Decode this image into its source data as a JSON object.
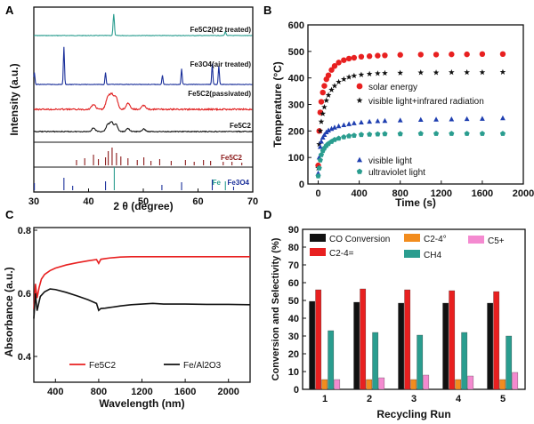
{
  "panels": [
    {
      "letter": "A",
      "type": "line",
      "xlabel": "2 θ (degree)",
      "ylabel": "Intensity (a.u.)",
      "xlim": [
        30,
        70
      ],
      "x_ticks": [
        30,
        40,
        50,
        60,
        70
      ],
      "colors": {
        "h2": "#2a9d8f",
        "air": "#1a2f9a",
        "pass": "#e02020",
        "fe5c2": "#111111",
        "ref1": "#8b1a1a",
        "ref2": "#1a2f9a"
      },
      "series": [
        {
          "key": "h2",
          "name": "Fe5C2(H2 treated)",
          "peaks": [
            [
              44.6,
              1.0
            ],
            [
              65.0,
              0.18
            ]
          ]
        },
        {
          "key": "air",
          "name": "Fe3O4(air treated)",
          "peaks": [
            [
              30.1,
              0.32
            ],
            [
              35.5,
              1.0
            ],
            [
              43.1,
              0.32
            ],
            [
              53.5,
              0.25
            ],
            [
              57.0,
              0.42
            ],
            [
              62.6,
              0.55
            ],
            [
              63.8,
              0.5
            ]
          ]
        },
        {
          "key": "pass",
          "name": "Fe5C2(passivated)",
          "peaks": [
            [
              40.9,
              0.25
            ],
            [
              43.5,
              0.55
            ],
            [
              44.2,
              0.7
            ],
            [
              45.0,
              0.6
            ],
            [
              47.2,
              0.3
            ],
            [
              50.1,
              0.2
            ]
          ]
        },
        {
          "key": "fe5c2",
          "name": "Fe5C2",
          "peaks": [
            [
              40.9,
              0.3
            ],
            [
              43.5,
              0.55
            ],
            [
              44.2,
              0.75
            ],
            [
              45.0,
              0.6
            ],
            [
              47.2,
              0.25
            ],
            [
              50.1,
              0.2
            ]
          ]
        }
      ],
      "reference_labels": [
        "Fe5C2",
        "Fe",
        "Fe3O4"
      ]
    },
    {
      "letter": "B",
      "type": "scatter",
      "xlabel": "Time (s)",
      "ylabel": "Temperature (°C)",
      "xlim": [
        -100,
        2000
      ],
      "ylim": [
        0,
        600
      ],
      "x_ticks": [
        0,
        400,
        800,
        1200,
        1600,
        2000
      ],
      "y_ticks": [
        0,
        100,
        200,
        300,
        400,
        500,
        600
      ],
      "series": [
        {
          "name": "solar energy",
          "marker": "circle",
          "color": "#e82020",
          "x": [
            0,
            10,
            20,
            30,
            45,
            60,
            80,
            100,
            130,
            160,
            200,
            250,
            300,
            350,
            420,
            500,
            580,
            650,
            800,
            1000,
            1150,
            1300,
            1450,
            1600,
            1800
          ],
          "y": [
            70,
            200,
            270,
            310,
            345,
            370,
            395,
            410,
            430,
            445,
            458,
            467,
            473,
            476,
            480,
            482,
            484,
            485,
            487,
            488,
            488,
            489,
            489,
            490,
            490
          ]
        },
        {
          "name": "visible light+infrared radiation",
          "marker": "star",
          "color": "#111111",
          "x": [
            0,
            10,
            20,
            30,
            45,
            60,
            80,
            100,
            130,
            160,
            200,
            250,
            300,
            350,
            420,
            500,
            580,
            650,
            800,
            1000,
            1150,
            1300,
            1450,
            1600,
            1800
          ],
          "y": [
            60,
            150,
            200,
            235,
            265,
            290,
            315,
            335,
            355,
            370,
            385,
            395,
            403,
            408,
            412,
            415,
            417,
            418,
            419,
            420,
            420,
            421,
            421,
            421,
            422
          ]
        },
        {
          "name": "visible light",
          "marker": "triangle",
          "color": "#1f3fb0",
          "x": [
            0,
            10,
            20,
            30,
            45,
            60,
            80,
            100,
            130,
            160,
            200,
            250,
            300,
            350,
            420,
            500,
            580,
            650,
            800,
            1000,
            1150,
            1300,
            1450,
            1600,
            1800
          ],
          "y": [
            40,
            100,
            140,
            160,
            175,
            185,
            195,
            202,
            208,
            213,
            218,
            222,
            226,
            229,
            232,
            235,
            237,
            238,
            240,
            242,
            243,
            244,
            245,
            246,
            248
          ]
        },
        {
          "name": "ultraviolet light",
          "marker": "pentagon",
          "color": "#2a9d8f",
          "x": [
            0,
            10,
            20,
            30,
            45,
            60,
            80,
            100,
            130,
            160,
            200,
            250,
            300,
            350,
            420,
            500,
            580,
            650,
            800,
            1000,
            1150,
            1300,
            1450,
            1600,
            1800
          ],
          "y": [
            30,
            60,
            90,
            110,
            125,
            135,
            145,
            152,
            160,
            167,
            172,
            177,
            181,
            183,
            186,
            187,
            188,
            189,
            189,
            190,
            190,
            190,
            190,
            190,
            190
          ]
        }
      ]
    },
    {
      "letter": "C",
      "type": "line",
      "xlabel": "Wavelength (nm)",
      "ylabel": "Absorbance (a.u.)",
      "xlim": [
        200,
        2200
      ],
      "ylim": [
        0.4,
        0.8
      ],
      "x_ticks": [
        400,
        800,
        1200,
        1600,
        2000
      ],
      "y_ticks": [
        0.4,
        0.6,
        0.8
      ],
      "y_tick_labels": [
        "0.4",
        "0.6",
        "0.8"
      ],
      "series": [
        {
          "name": "Fe5C2",
          "color": "#e82020",
          "x": [
            200,
            215,
            230,
            250,
            270,
            300,
            350,
            400,
            500,
            600,
            700,
            780,
            800,
            820,
            860,
            900,
            1000,
            1100,
            1200,
            1400,
            1600,
            1800,
            2000,
            2200
          ],
          "y": [
            0.55,
            0.63,
            0.585,
            0.62,
            0.645,
            0.66,
            0.672,
            0.68,
            0.69,
            0.697,
            0.703,
            0.707,
            0.695,
            0.708,
            0.71,
            0.712,
            0.715,
            0.716,
            0.716,
            0.716,
            0.716,
            0.716,
            0.716,
            0.716
          ]
        },
        {
          "name": "Fe/Al2O3",
          "color": "#111111",
          "x": [
            200,
            215,
            230,
            260,
            300,
            350,
            400,
            500,
            600,
            700,
            780,
            800,
            820,
            860,
            900,
            1000,
            1100,
            1200,
            1300,
            1400,
            1600,
            1800,
            2000,
            2200
          ],
          "y": [
            0.52,
            0.6,
            0.545,
            0.59,
            0.605,
            0.614,
            0.612,
            0.603,
            0.592,
            0.58,
            0.568,
            0.546,
            0.552,
            0.553,
            0.555,
            0.56,
            0.564,
            0.566,
            0.568,
            0.566,
            0.566,
            0.565,
            0.565,
            0.564
          ]
        }
      ]
    },
    {
      "letter": "D",
      "type": "bar",
      "xlabel": "Recycling Run",
      "ylabel": "Conversion and Selectivity (%)",
      "ylim": [
        0,
        90
      ],
      "y_ticks": [
        0,
        10,
        20,
        30,
        40,
        50,
        60,
        70,
        80,
        90
      ],
      "categories": [
        "1",
        "2",
        "3",
        "4",
        "5"
      ],
      "series": [
        {
          "name": "CO Conversion",
          "color": "#111111",
          "values": [
            49.5,
            49,
            48.5,
            48.5,
            48.5
          ]
        },
        {
          "name": "C2-4=",
          "color": "#e82020",
          "values": [
            56,
            56.5,
            56,
            55.5,
            55
          ]
        },
        {
          "name": "C2-4°",
          "color": "#f28c1e",
          "values": [
            5.5,
            5.5,
            5.5,
            5.5,
            5.5
          ]
        },
        {
          "name": "CH4",
          "color": "#2a9d8f",
          "values": [
            33,
            32,
            30.5,
            32,
            30
          ]
        },
        {
          "name": "C5+",
          "color": "#f48ad0",
          "values": [
            5.5,
            6.5,
            8,
            7.5,
            9.5
          ]
        }
      ]
    }
  ],
  "chart_data": [
    {
      "type": "line",
      "title": "",
      "xlabel": "2 θ (degree)",
      "ylabel": "Intensity (a.u.)",
      "xlim": [
        30,
        70
      ],
      "legend": [
        "Fe5C2(H2 treated)",
        "Fe3O4(air treated)",
        "Fe5C2(passivated)",
        "Fe5C2",
        "Fe5C2",
        "Fe",
        "Fe3O4"
      ]
    },
    {
      "type": "scatter",
      "title": "",
      "xlabel": "Time (s)",
      "ylabel": "Temperature (°C)",
      "xlim": [
        -100,
        2000
      ],
      "ylim": [
        0,
        600
      ],
      "legend": [
        "solar energy",
        "visible light+infrared radiation",
        "visible light",
        "ultraviolet light"
      ]
    },
    {
      "type": "line",
      "title": "",
      "xlabel": "Wavelength (nm)",
      "ylabel": "Absorbance (a.u.)",
      "xlim": [
        200,
        2200
      ],
      "ylim": [
        0.4,
        0.8
      ],
      "legend": [
        "Fe5C2",
        "Fe/Al2O3"
      ]
    },
    {
      "type": "bar",
      "title": "",
      "xlabel": "Recycling Run",
      "ylabel": "Conversion and Selectivity (%)",
      "ylim": [
        0,
        90
      ],
      "categories": [
        "1",
        "2",
        "3",
        "4",
        "5"
      ],
      "legend": [
        "CO Conversion",
        "C2-4=",
        "C2-4°",
        "CH4",
        "C5+"
      ]
    }
  ]
}
